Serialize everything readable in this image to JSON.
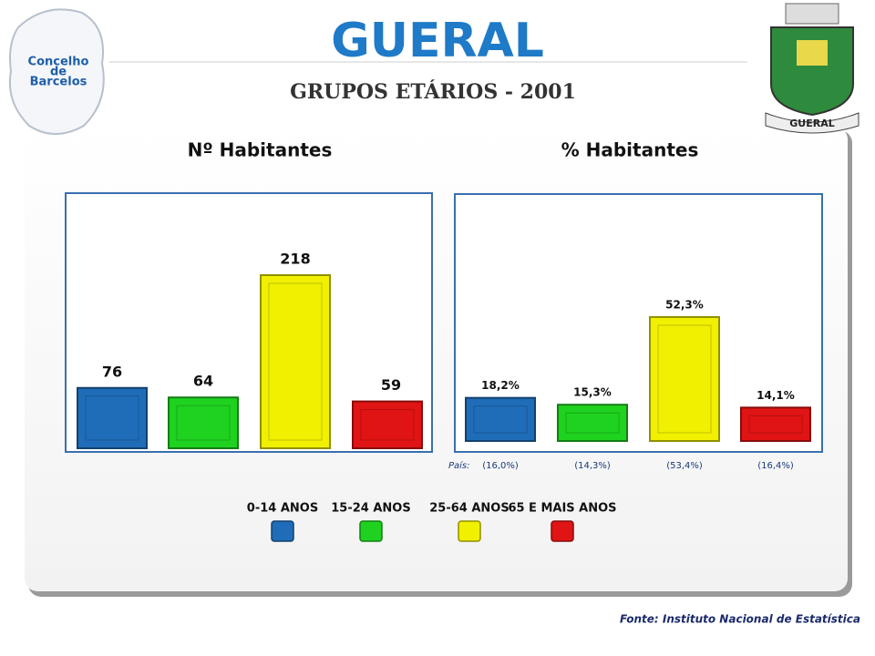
{
  "header": {
    "title": "GUERAL",
    "subtitle": "GRUPOS ETÁRIOS - 2001",
    "logo": [
      "Concelho",
      "de",
      "Barcelos"
    ],
    "crest_label": "GUERAL"
  },
  "chart_data": [
    {
      "type": "bar",
      "title": "Nº Habitantes",
      "categories": [
        "0-14 ANOS",
        "15-24 ANOS",
        "25-64 ANOS",
        "65 E MAIS ANOS"
      ],
      "values": [
        76,
        64,
        218,
        59
      ],
      "colors": [
        "#1f6db8",
        "#1fd21f",
        "#f0f000",
        "#e01414"
      ]
    },
    {
      "type": "bar",
      "title": "% Habitantes",
      "values": [
        18.2,
        15.3,
        52.3,
        14.1
      ],
      "value_labels": [
        "18,2%",
        "15,3%",
        "52,3%",
        "14,1%"
      ],
      "colors": [
        "#1f6db8",
        "#1fd21f",
        "#f0f000",
        "#e01414"
      ],
      "reference": {
        "label": "País:",
        "values": [
          16.0,
          14.3,
          53.4,
          16.4
        ],
        "value_labels": [
          "(16,0%)",
          "(14,3%)",
          "(53,4%)",
          "(16,4%)"
        ]
      }
    }
  ],
  "source": "Fonte: Instituto Nacional de Estatística"
}
